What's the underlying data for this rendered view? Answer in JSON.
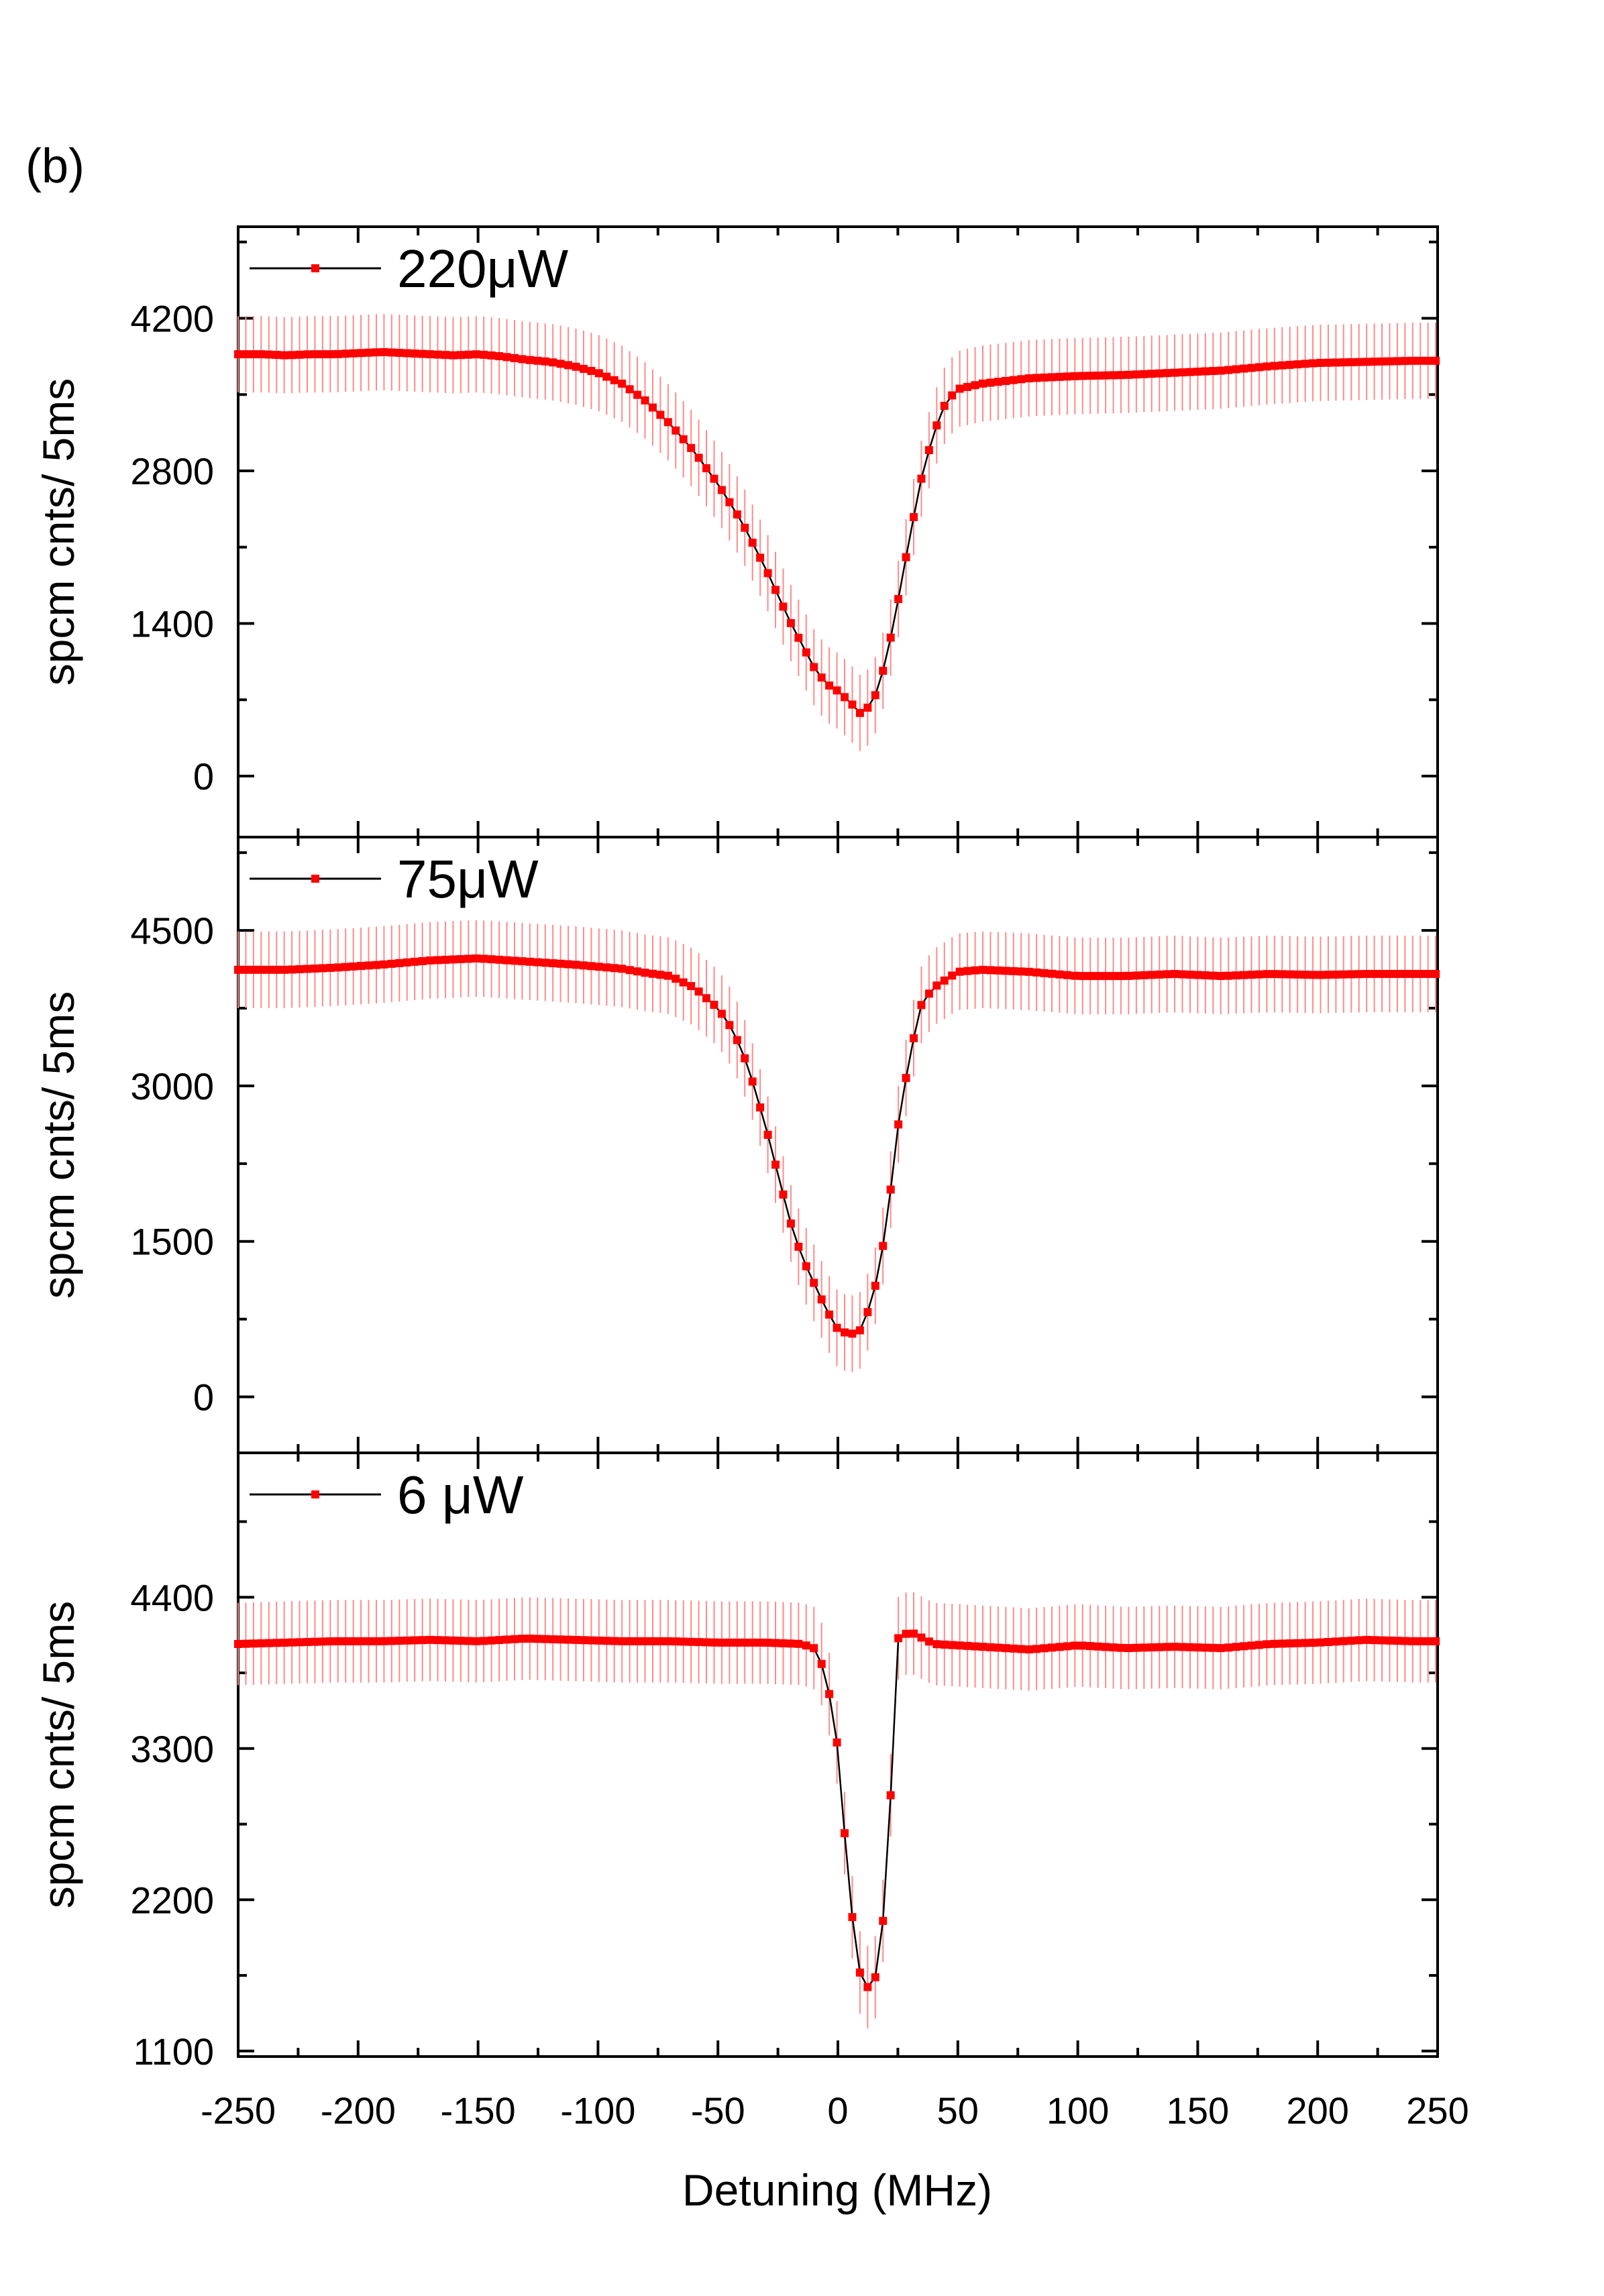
{
  "figure": {
    "panel_label": "(b)",
    "x_axis_title": "Detuning (MHz)",
    "x_ticks": [
      -250,
      -200,
      -150,
      -100,
      -50,
      0,
      50,
      100,
      150,
      200,
      250
    ],
    "x_range": [
      -250,
      250
    ],
    "colors": {
      "marker": "#ff0000",
      "line": "#000000",
      "error_bar": "#ff8a8a",
      "frame": "#000000"
    }
  },
  "chart_data": [
    {
      "type": "scatter",
      "legend": "220μW",
      "ylabel": "spcm cnts/ 5ms",
      "xlabel": "",
      "xlim": [
        -250,
        250
      ],
      "ylim": [
        -560,
        5040
      ],
      "yticks": [
        0,
        1400,
        2800,
        4200
      ],
      "error_bar": 350,
      "grid": false,
      "legend_position": "top-left",
      "series": [
        {
          "points": [
            [
              -250,
              3870
            ],
            [
              -240,
              3870
            ],
            [
              -230,
              3860
            ],
            [
              -220,
              3870
            ],
            [
              -210,
              3870
            ],
            [
              -200,
              3880
            ],
            [
              -190,
              3890
            ],
            [
              -180,
              3880
            ],
            [
              -170,
              3870
            ],
            [
              -160,
              3860
            ],
            [
              -150,
              3870
            ],
            [
              -140,
              3850
            ],
            [
              -130,
              3820
            ],
            [
              -120,
              3800
            ],
            [
              -110,
              3760
            ],
            [
              -100,
              3700
            ],
            [
              -90,
              3600
            ],
            [
              -80,
              3440
            ],
            [
              -70,
              3230
            ],
            [
              -60,
              2980
            ],
            [
              -50,
              2680
            ],
            [
              -40,
              2330
            ],
            [
              -30,
              1900
            ],
            [
              -20,
              1420
            ],
            [
              -10,
              1000
            ],
            [
              -5,
              850
            ],
            [
              0,
              780
            ],
            [
              5,
              680
            ],
            [
              10,
              560
            ],
            [
              15,
              700
            ],
            [
              20,
              1050
            ],
            [
              25,
              1600
            ],
            [
              30,
              2200
            ],
            [
              35,
              2750
            ],
            [
              40,
              3150
            ],
            [
              45,
              3430
            ],
            [
              50,
              3550
            ],
            [
              60,
              3600
            ],
            [
              80,
              3650
            ],
            [
              100,
              3670
            ],
            [
              120,
              3680
            ],
            [
              140,
              3700
            ],
            [
              160,
              3720
            ],
            [
              180,
              3760
            ],
            [
              200,
              3790
            ],
            [
              220,
              3800
            ],
            [
              240,
              3810
            ],
            [
              250,
              3810
            ]
          ]
        }
      ]
    },
    {
      "type": "scatter",
      "legend": "75μW",
      "ylabel": "spcm cnts/ 5ms",
      "xlabel": "",
      "xlim": [
        -250,
        250
      ],
      "ylim": [
        -540,
        5400
      ],
      "yticks": [
        0,
        1500,
        3000,
        4500
      ],
      "error_bar": 370,
      "grid": false,
      "legend_position": "top-left",
      "series": [
        {
          "points": [
            [
              -250,
              4120
            ],
            [
              -230,
              4120
            ],
            [
              -210,
              4140
            ],
            [
              -190,
              4170
            ],
            [
              -170,
              4210
            ],
            [
              -150,
              4230
            ],
            [
              -130,
              4200
            ],
            [
              -110,
              4170
            ],
            [
              -90,
              4130
            ],
            [
              -80,
              4090
            ],
            [
              -70,
              4060
            ],
            [
              -60,
              3950
            ],
            [
              -50,
              3750
            ],
            [
              -45,
              3580
            ],
            [
              -40,
              3350
            ],
            [
              -35,
              3000
            ],
            [
              -30,
              2600
            ],
            [
              -25,
              2150
            ],
            [
              -20,
              1700
            ],
            [
              -15,
              1350
            ],
            [
              -10,
              1100
            ],
            [
              -5,
              850
            ],
            [
              0,
              650
            ],
            [
              5,
              600
            ],
            [
              10,
              650
            ],
            [
              15,
              1000
            ],
            [
              20,
              1600
            ],
            [
              25,
              2600
            ],
            [
              30,
              3300
            ],
            [
              35,
              3800
            ],
            [
              40,
              3950
            ],
            [
              50,
              4100
            ],
            [
              60,
              4120
            ],
            [
              80,
              4100
            ],
            [
              100,
              4060
            ],
            [
              120,
              4060
            ],
            [
              140,
              4080
            ],
            [
              160,
              4060
            ],
            [
              180,
              4080
            ],
            [
              200,
              4070
            ],
            [
              220,
              4080
            ],
            [
              240,
              4080
            ],
            [
              250,
              4080
            ]
          ]
        }
      ]
    },
    {
      "type": "scatter",
      "legend": "6 μW",
      "ylabel": "spcm cnts/ 5ms",
      "xlabel": "Detuning (MHz)",
      "xlim": [
        -250,
        250
      ],
      "ylim": [
        1060,
        5450
      ],
      "yticks": [
        1100,
        2200,
        3300,
        4400
      ],
      "error_bar": 300,
      "grid": false,
      "legend_position": "top-left",
      "series": [
        {
          "points": [
            [
              -250,
              4060
            ],
            [
              -230,
              4070
            ],
            [
              -210,
              4080
            ],
            [
              -190,
              4080
            ],
            [
              -170,
              4090
            ],
            [
              -150,
              4080
            ],
            [
              -130,
              4100
            ],
            [
              -110,
              4090
            ],
            [
              -90,
              4080
            ],
            [
              -70,
              4080
            ],
            [
              -50,
              4070
            ],
            [
              -30,
              4070
            ],
            [
              -15,
              4060
            ],
            [
              -10,
              4030
            ],
            [
              -5,
              3850
            ],
            [
              0,
              3300
            ],
            [
              5,
              2200
            ],
            [
              10,
              1570
            ],
            [
              15,
              1560
            ],
            [
              20,
              2200
            ],
            [
              25,
              4100
            ],
            [
              30,
              4150
            ],
            [
              40,
              4060
            ],
            [
              60,
              4040
            ],
            [
              80,
              4020
            ],
            [
              100,
              4050
            ],
            [
              120,
              4030
            ],
            [
              140,
              4040
            ],
            [
              160,
              4030
            ],
            [
              180,
              4060
            ],
            [
              200,
              4070
            ],
            [
              220,
              4090
            ],
            [
              240,
              4080
            ],
            [
              250,
              4080
            ]
          ]
        }
      ]
    }
  ]
}
